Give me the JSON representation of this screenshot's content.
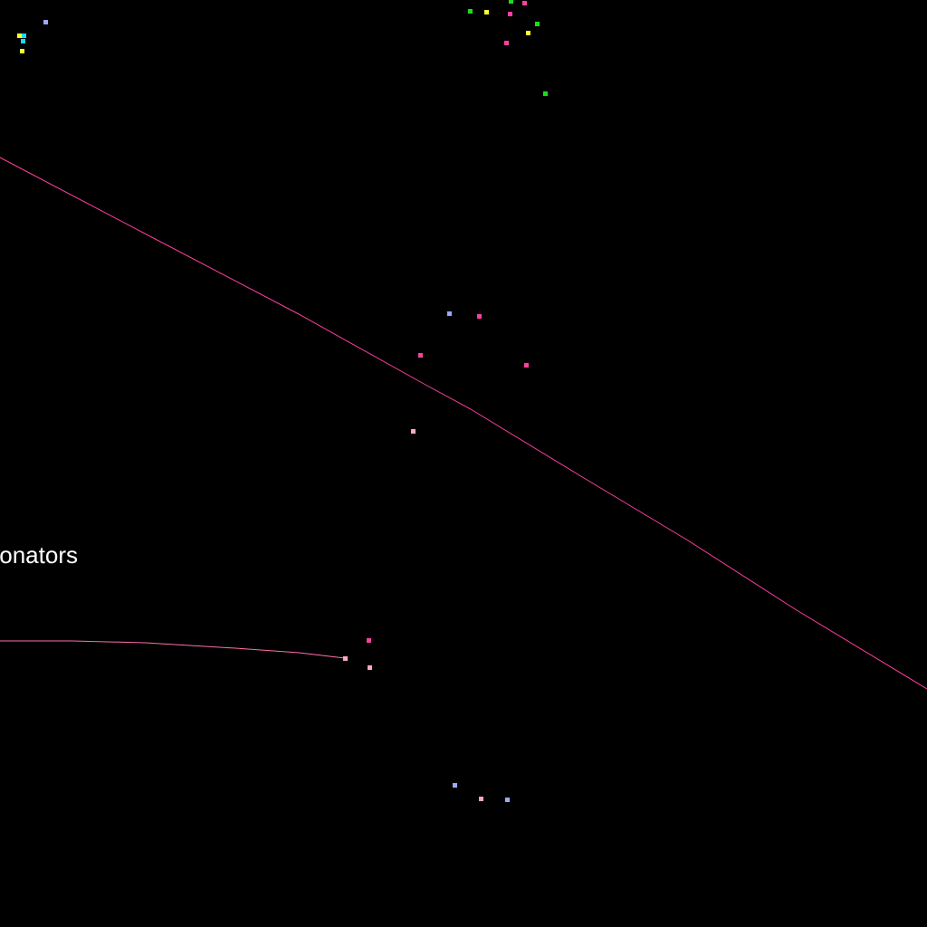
{
  "map": {
    "background": "#000000",
    "labels": {
      "partial_label": "onators"
    },
    "colors": {
      "route_line": "#ff3f9f",
      "marker_blue": "#9aa8ff",
      "marker_magenta": "#ff3f9f",
      "marker_pink": "#ffa5c8",
      "marker_green": "#18e018",
      "marker_yellow": "#ffff33",
      "marker_cyan": "#19d8ff",
      "label_text": "#ffffff"
    }
  }
}
